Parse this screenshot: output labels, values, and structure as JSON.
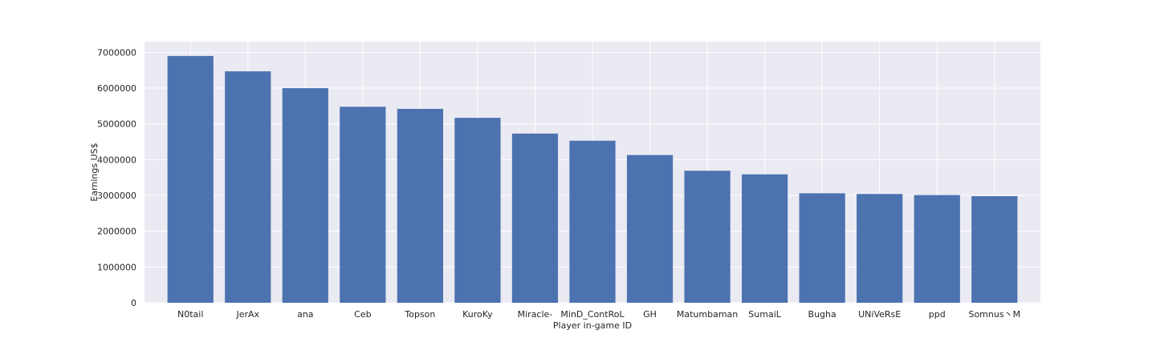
{
  "chart_data": {
    "type": "bar",
    "title": "",
    "xlabel": "Player in-game ID",
    "ylabel": "Earnings US$",
    "ylim": [
      0,
      7300000
    ],
    "yticks": [
      0,
      1000000,
      2000000,
      3000000,
      4000000,
      5000000,
      6000000,
      7000000
    ],
    "ytick_labels": [
      "0",
      "1000000",
      "2000000",
      "3000000",
      "4000000",
      "5000000",
      "6000000",
      "7000000"
    ],
    "categories": [
      "N0tail",
      "JerAx",
      "ana",
      "Ceb",
      "Topson",
      "KuroKy",
      "Miracle-",
      "MinD_ContRoL",
      "GH",
      "Matumbaman",
      "SumaiL",
      "Bugha",
      "UNiVeRsE",
      "ppd",
      "Somnus丶M"
    ],
    "values": [
      6900000,
      6470000,
      6000000,
      5480000,
      5420000,
      5170000,
      4730000,
      4530000,
      4130000,
      3690000,
      3590000,
      3060000,
      3040000,
      3010000,
      2980000
    ],
    "grid": true,
    "bar_color": "#4c72b0",
    "plot_background": "#eaeaf2",
    "grid_color": "#ffffff"
  }
}
